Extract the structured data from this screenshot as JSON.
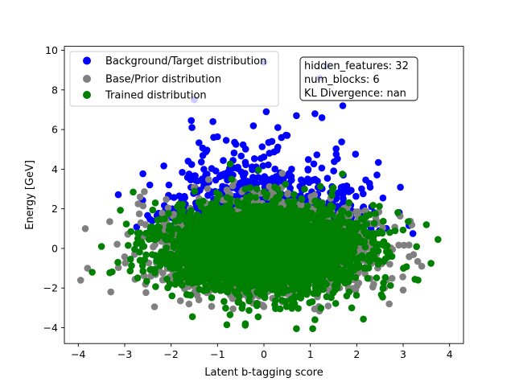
{
  "chart_data": {
    "type": "scatter",
    "xlabel": "Latent b-tagging score",
    "ylabel": "Energy [GeV]",
    "xlim": [
      -4.3,
      4.3
    ],
    "ylim": [
      -4.8,
      10.2
    ],
    "xticks": [
      -4,
      -3,
      -2,
      -1,
      0,
      1,
      2,
      3,
      4
    ],
    "yticks": [
      -4,
      -2,
      0,
      2,
      4,
      6,
      8,
      10
    ],
    "grid": false,
    "legend_placement": "top-left",
    "series": [
      {
        "name": "Background/Target distribution",
        "color": "#0000ff",
        "distribution": {
          "x_mean": 0.0,
          "x_std": 1.0,
          "y_mean": 0.9,
          "y_std": 1.7,
          "count": 1600
        },
        "outliers": [
          [
            -1.5,
            7.5
          ],
          [
            0.0,
            9.4
          ],
          [
            1.35,
            9.2
          ],
          [
            1.2,
            8.6
          ],
          [
            0.05,
            6.9
          ],
          [
            1.7,
            7.2
          ],
          [
            -1.1,
            6.4
          ],
          [
            0.7,
            6.7
          ],
          [
            1.1,
            6.8
          ],
          [
            1.25,
            6.6
          ],
          [
            0.3,
            6.1
          ],
          [
            -1.55,
            6.1
          ]
        ]
      },
      {
        "name": "Base/Prior distribution",
        "color": "#808080",
        "distribution": {
          "x_mean": 0.0,
          "x_std": 1.0,
          "y_mean": 0.0,
          "y_std": 1.0,
          "count": 4000
        },
        "outliers": [
          [
            -3.85,
            1.0
          ],
          [
            -3.95,
            -1.6
          ],
          [
            -3.8,
            -1.0
          ],
          [
            -3.3,
            -2.2
          ],
          [
            3.0,
            -2.1
          ],
          [
            3.4,
            -0.9
          ],
          [
            2.7,
            -2.8
          ]
        ]
      },
      {
        "name": "Trained distribution",
        "color": "#008000",
        "distribution": {
          "x_mean": 0.0,
          "x_std": 1.0,
          "y_mean": 0.0,
          "y_std": 1.05,
          "count": 4000
        },
        "outliers": [
          [
            3.75,
            0.45
          ],
          [
            3.6,
            -0.75
          ],
          [
            -3.7,
            -1.2
          ],
          [
            0.7,
            -4.05
          ],
          [
            1.05,
            -4.05
          ],
          [
            1.1,
            -3.6
          ],
          [
            -0.8,
            -3.85
          ],
          [
            -0.4,
            -3.8
          ],
          [
            3.5,
            1.2
          ],
          [
            -3.5,
            0.1
          ]
        ]
      }
    ],
    "annotation_lines": [
      "hidden_features: 32",
      "num_blocks: 6",
      "KL Divergence: nan"
    ]
  }
}
